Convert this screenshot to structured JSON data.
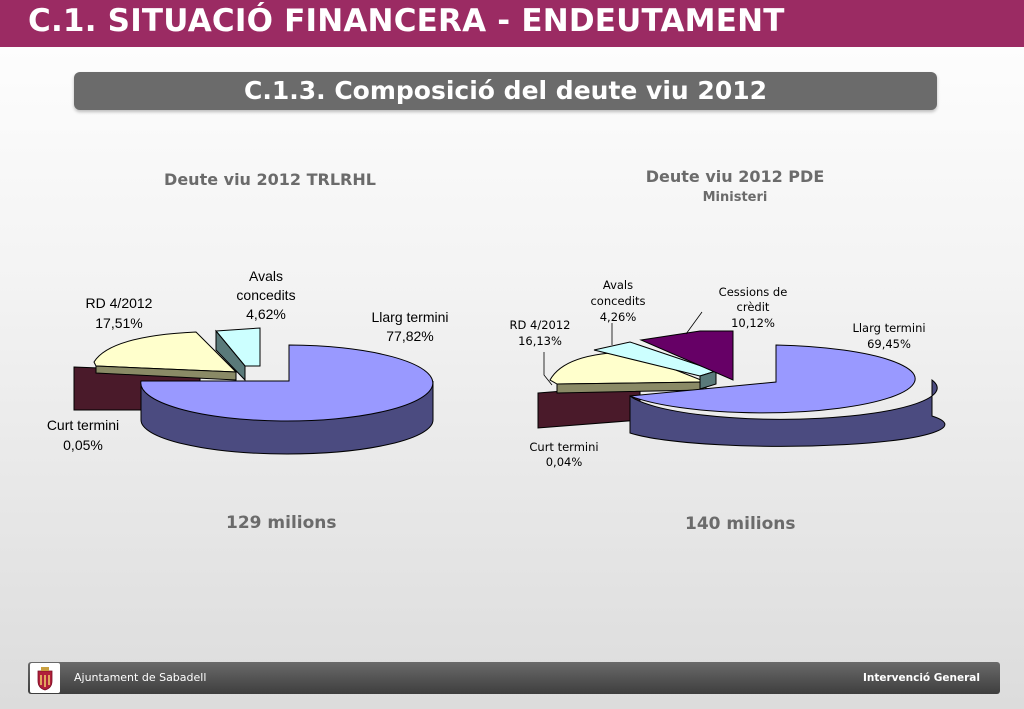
{
  "header": {
    "title": "C.1. SITUACIÓ FINANCERA - ENDEUTAMENT"
  },
  "subheader": {
    "title": "C.1.3. Composició del deute viu 2012"
  },
  "chart_data": [
    {
      "type": "pie",
      "title": "Deute viu 2012 TRLRHL",
      "subtitle": "",
      "total_label": "129 milions",
      "slices": [
        {
          "name": "Llarg termini",
          "label": "Llarg termini",
          "value": 77.82,
          "value_label": "77,82%",
          "color": "#9999ff",
          "side_color": "#4b4b80"
        },
        {
          "name": "Curt termini",
          "label": "Curt termini",
          "value": 0.05,
          "value_label": "0,05%",
          "color": "#4a1a2a",
          "side_color": "#2e0d1a"
        },
        {
          "name": "RD 4/2012",
          "label": "RD 4/2012",
          "value": 17.51,
          "value_label": "17,51%",
          "color": "#ffffcc",
          "side_color": "#8a8a66"
        },
        {
          "name": "Avals concedits",
          "label": "Avals concedits",
          "value": 4.62,
          "value_label": "4,62%",
          "color": "#ccffff",
          "side_color": "#5a7a7a"
        }
      ]
    },
    {
      "type": "pie",
      "title": "Deute viu 2012 PDE",
      "subtitle": "Ministeri",
      "total_label": "140 milions",
      "slices": [
        {
          "name": "Llarg termini",
          "label": "Llarg termini",
          "value": 69.45,
          "value_label": "69,45%",
          "color": "#9999ff",
          "side_color": "#4b4b80"
        },
        {
          "name": "Curt termini",
          "label": "Curt termini",
          "value": 0.04,
          "value_label": "0,04%",
          "color": "#4a1a2a",
          "side_color": "#2e0d1a"
        },
        {
          "name": "RD 4/2012",
          "label": "RD 4/2012",
          "value": 16.13,
          "value_label": "16,13%",
          "color": "#ffffcc",
          "side_color": "#8a8a66"
        },
        {
          "name": "Avals concedits",
          "label": "Avals concedits",
          "value": 4.26,
          "value_label": "4,26%",
          "color": "#ccffff",
          "side_color": "#5a7a7a"
        },
        {
          "name": "Cessions de crèdit",
          "label": "Cessions de crèdit",
          "value": 10.12,
          "value_label": "10,12%",
          "color": "#660066",
          "side_color": "#3a003a"
        }
      ]
    }
  ],
  "charts_text": {
    "left": {
      "title": "Deute viu 2012 TRLRHL",
      "total": "129 milions",
      "labels": {
        "llarg_1": "Llarg termini",
        "llarg_2": "77,82%",
        "curt_1": "Curt termini",
        "curt_2": "0,05%",
        "rd_1": "RD 4/2012",
        "rd_2": "17,51%",
        "avals_1": "Avals",
        "avals_2": "concedits",
        "avals_3": "4,62%"
      }
    },
    "right": {
      "title": "Deute viu 2012 PDE",
      "subtitle": "Ministeri",
      "total": "140 milions",
      "labels": {
        "llarg_1": "Llarg termini",
        "llarg_2": "69,45%",
        "curt_1": "Curt termini",
        "curt_2": "0,04%",
        "rd_1": "RD 4/2012",
        "rd_2": "16,13%",
        "avals_1": "Avals",
        "avals_2": "concedits",
        "avals_3": "4,26%",
        "cess_1": "Cessions de",
        "cess_2": "crèdit",
        "cess_3": "10,12%"
      }
    }
  },
  "footer": {
    "left_text": "Ajuntament de Sabadell",
    "right_text": "Intervenció General",
    "logo_icon": "coat-of-arms-icon"
  },
  "colors": {
    "header": "#9b2b63",
    "subheader": "#6b6b6b",
    "chart_title": "#6b6b6b",
    "footer": "#4a4a4a"
  }
}
